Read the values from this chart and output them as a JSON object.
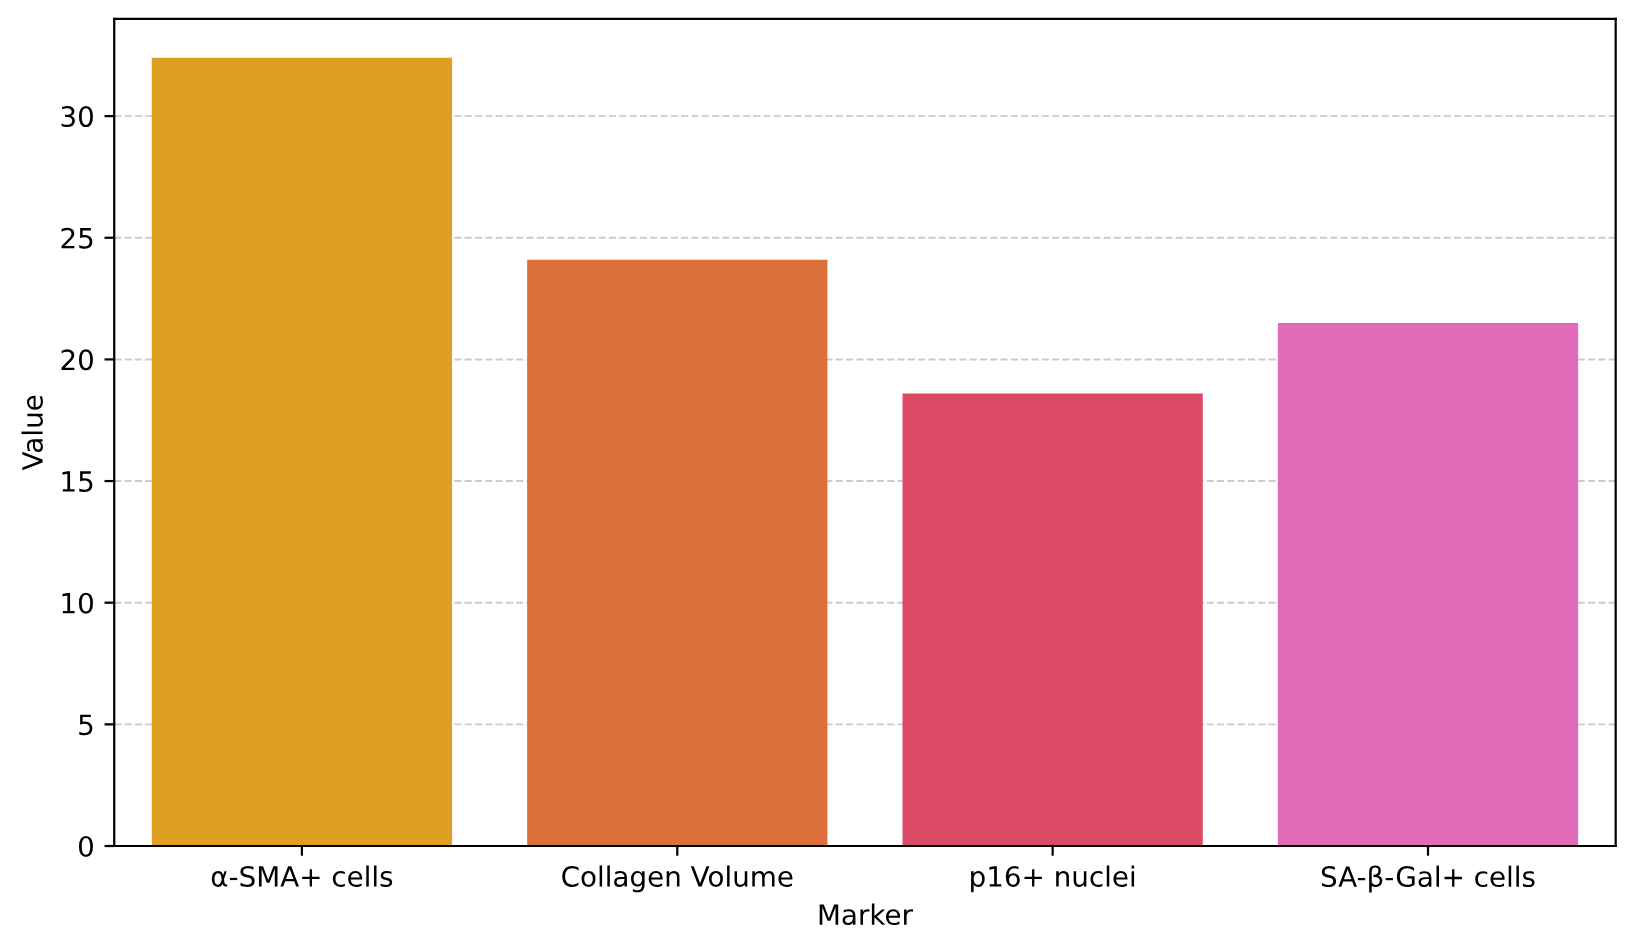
{
  "chart_data": {
    "type": "bar",
    "xlabel": "Marker",
    "ylabel": "Value",
    "categories": [
      "α-SMA+ cells",
      "Collagen Volume",
      "p16+ nuclei",
      "SA-β-Gal+ cells"
    ],
    "values": [
      32.4,
      24.1,
      18.6,
      21.5
    ],
    "colors": [
      "#dea021",
      "#db703a",
      "#dc4b66",
      "#e26bb9"
    ],
    "ylim": [
      0,
      34
    ],
    "yticks": [
      0,
      5,
      10,
      15,
      20,
      25,
      30
    ],
    "grid": "y"
  }
}
